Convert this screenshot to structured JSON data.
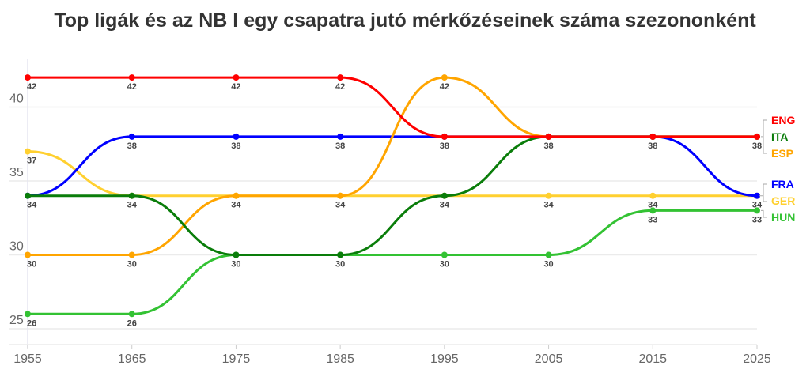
{
  "chart_data": {
    "type": "line",
    "title": "Top ligák és az NB I egy csapatra jutó mérkőzéseinek száma szezononként",
    "xlabel": "",
    "ylabel": "",
    "x": [
      1955,
      1965,
      1975,
      1985,
      1995,
      2005,
      2015,
      2025
    ],
    "x_ticks": [
      "1955",
      "1965",
      "1975",
      "1985",
      "1995",
      "2005",
      "2015",
      "2025"
    ],
    "y_ticks": [
      "25",
      "30",
      "35",
      "40"
    ],
    "ylim": [
      24,
      43.3
    ],
    "grid": true,
    "legend_placement": "right",
    "series": [
      {
        "name": "ENG",
        "color": "#ff0000",
        "values": [
          42,
          42,
          42,
          42,
          38,
          38,
          38,
          38
        ]
      },
      {
        "name": "ITA",
        "color": "#0a7d0a",
        "values": [
          34,
          34,
          30,
          30,
          34,
          38,
          38,
          38
        ]
      },
      {
        "name": "ESP",
        "color": "#ffa500",
        "values": [
          30,
          30,
          34,
          34,
          42,
          38,
          38,
          38
        ]
      },
      {
        "name": "FRA",
        "color": "#0000ff",
        "values": [
          34,
          38,
          38,
          38,
          38,
          38,
          38,
          34
        ]
      },
      {
        "name": "GER",
        "color": "#ffd030",
        "values": [
          37,
          34,
          34,
          34,
          34,
          34,
          34,
          34
        ]
      },
      {
        "name": "HUN",
        "color": "#33c233",
        "values": [
          26,
          26,
          30,
          30,
          30,
          30,
          33,
          33
        ]
      }
    ]
  }
}
